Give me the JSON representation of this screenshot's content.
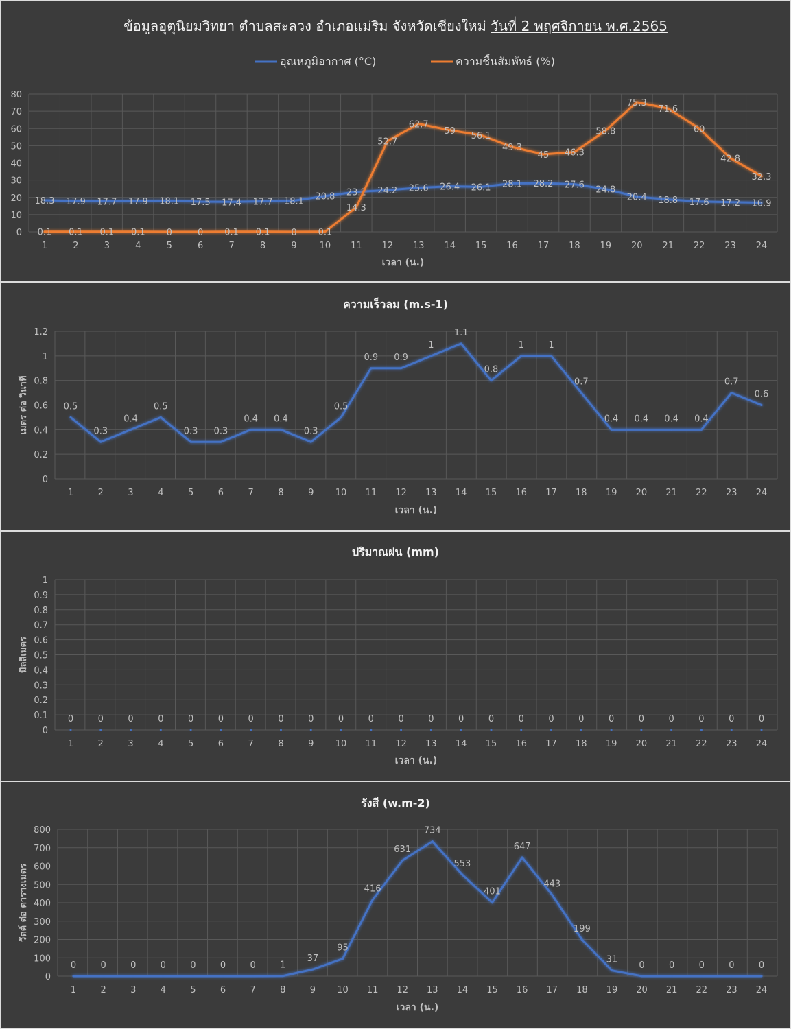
{
  "chart_data": [
    {
      "type": "line",
      "title": "ข้อมูลอุตุนิยมวิทยา  ตำบลสะลวง  อำเภอแม่ริม  จังหวัดเชียงใหม่",
      "title_date": "วันที่ 2 พฤศจิกายน พ.ศ.2565",
      "xlabel": "เวลา (น.)",
      "ylabel": "",
      "ylim": [
        0,
        80
      ],
      "yticks": [
        0,
        10,
        20,
        30,
        40,
        50,
        60,
        70,
        80
      ],
      "grid": true,
      "legend": "top",
      "categories": [
        "1",
        "2",
        "3",
        "4",
        "5",
        "6",
        "7",
        "8",
        "9",
        "10",
        "11",
        "12",
        "13",
        "14",
        "15",
        "16",
        "17",
        "18",
        "19",
        "20",
        "21",
        "22",
        "23",
        "24"
      ],
      "series": [
        {
          "name": "อุณหภูมิอากาศ (°C)",
          "color": "#4472c4",
          "values": [
            18.3,
            17.9,
            17.7,
            17.9,
            18.1,
            17.5,
            17.4,
            17.7,
            18.1,
            20.8,
            23.2,
            24.2,
            25.6,
            26.4,
            26.1,
            28.1,
            28.2,
            27.6,
            24.8,
            20.4,
            18.8,
            17.6,
            17.2,
            16.9
          ]
        },
        {
          "name": "ความชื้นสัมพัทธ์ (%)",
          "color": "#ed7d31",
          "values": [
            0.1,
            0.1,
            0.1,
            0.1,
            0,
            0,
            0.1,
            0.1,
            0,
            0.1,
            14.3,
            52.7,
            62.7,
            59,
            56.1,
            49.3,
            45,
            46.3,
            58.8,
            75.3,
            71.6,
            60,
            42.8,
            32.3
          ]
        }
      ]
    },
    {
      "type": "line",
      "title": "ความเร็วลม (m.s-1)",
      "xlabel": "เวลา (น.)",
      "ylabel": "เมตร ต่อ วินาที",
      "ylim": [
        0,
        1.2
      ],
      "yticks": [
        0,
        0.2,
        0.4,
        0.6,
        0.8,
        1,
        1.2
      ],
      "grid": true,
      "categories": [
        "1",
        "2",
        "3",
        "4",
        "5",
        "6",
        "7",
        "8",
        "9",
        "10",
        "11",
        "12",
        "13",
        "14",
        "15",
        "16",
        "17",
        "18",
        "19",
        "20",
        "21",
        "22",
        "23",
        "24"
      ],
      "series": [
        {
          "color": "#4472c4",
          "values": [
            0.5,
            0.3,
            0.4,
            0.5,
            0.3,
            0.3,
            0.4,
            0.4,
            0.3,
            0.5,
            0.9,
            0.9,
            1,
            1.1,
            0.8,
            1,
            1,
            0.7,
            0.4,
            0.4,
            0.4,
            0.4,
            0.7,
            0.6
          ]
        }
      ]
    },
    {
      "type": "line",
      "title": "ปริมาณฝน (mm)",
      "xlabel": "เวลา (น.)",
      "ylabel": "มิลลิเมตร",
      "ylim": [
        0,
        1
      ],
      "yticks": [
        0,
        0.1,
        0.2,
        0.3,
        0.4,
        0.5,
        0.6,
        0.7,
        0.8,
        0.9,
        1
      ],
      "grid": true,
      "categories": [
        "1",
        "2",
        "3",
        "4",
        "5",
        "6",
        "7",
        "8",
        "9",
        "10",
        "11",
        "12",
        "13",
        "14",
        "15",
        "16",
        "17",
        "18",
        "19",
        "20",
        "21",
        "22",
        "23",
        "24"
      ],
      "series": [
        {
          "color": "#4472c4",
          "values": [
            0,
            0,
            0,
            0,
            0,
            0,
            0,
            0,
            0,
            0,
            0,
            0,
            0,
            0,
            0,
            0,
            0,
            0,
            0,
            0,
            0,
            0,
            0,
            0
          ]
        }
      ]
    },
    {
      "type": "line",
      "title": "รังสี (w.m-2)",
      "xlabel": "เวลา (น.)",
      "ylabel": "วัตต์ ต่อ ตารางเมตร",
      "ylim": [
        0,
        800
      ],
      "yticks": [
        0,
        100,
        200,
        300,
        400,
        500,
        600,
        700,
        800
      ],
      "grid": true,
      "categories": [
        "1",
        "2",
        "3",
        "4",
        "5",
        "6",
        "7",
        "8",
        "9",
        "10",
        "11",
        "12",
        "13",
        "14",
        "15",
        "16",
        "17",
        "18",
        "19",
        "20",
        "21",
        "22",
        "23",
        "24"
      ],
      "series": [
        {
          "color": "#4472c4",
          "values": [
            0,
            0,
            0,
            0,
            0,
            0,
            0,
            1,
            37,
            95,
            416,
            631,
            734,
            553,
            401,
            647,
            443,
            199,
            31,
            0,
            0,
            0,
            0,
            0
          ]
        }
      ]
    }
  ]
}
